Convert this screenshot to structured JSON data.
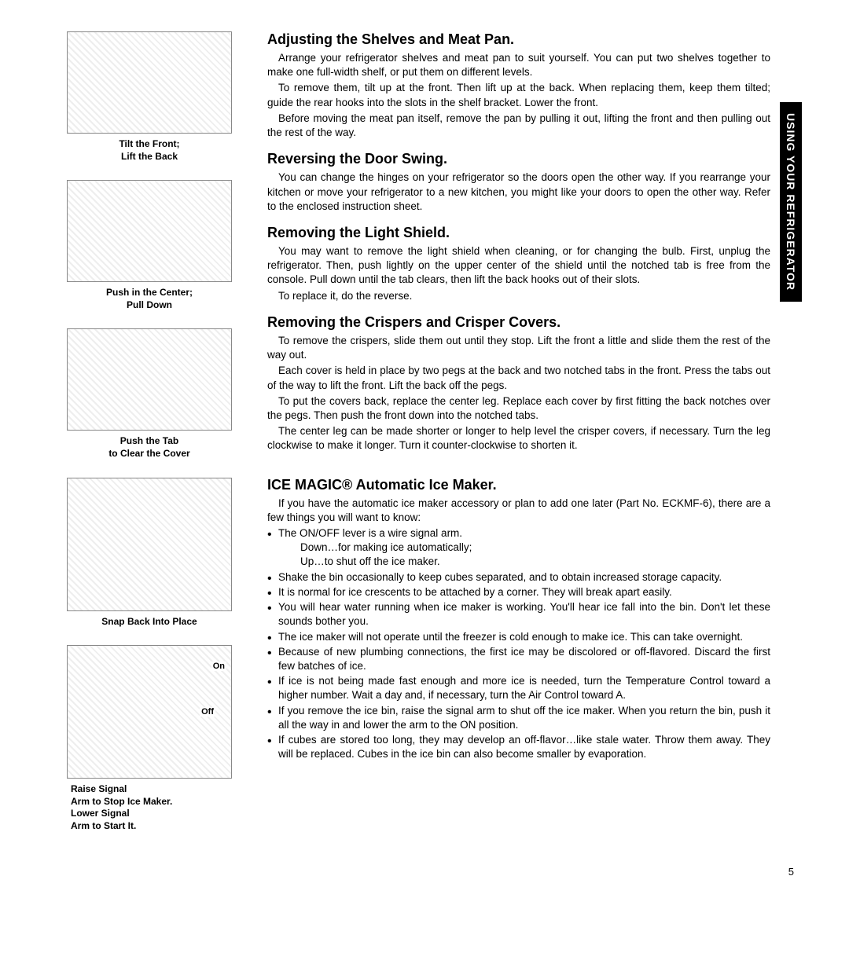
{
  "sideTab": "USING YOUR REFRIGERATOR",
  "figures": [
    {
      "caption": "Tilt the Front;\nLift the Back"
    },
    {
      "caption": "Push in the Center;\nPull Down"
    },
    {
      "caption": "Push the Tab\nto Clear the Cover"
    },
    {
      "caption": "Snap Back Into Place"
    },
    {
      "caption": "Raise Signal\nArm to Stop Ice Maker.\nLower Signal\nArm to Start It.",
      "labels": {
        "on": "On",
        "off": "Off"
      }
    }
  ],
  "sections": [
    {
      "heading": "Adjusting the Shelves and Meat Pan.",
      "paragraphs": [
        "Arrange your refrigerator shelves and meat pan to suit yourself. You can put two shelves together to make one full-width shelf, or put them on different levels.",
        "To remove them, tilt up at the front. Then lift up at the back. When replacing them, keep them tilted; guide the rear hooks into the slots in the shelf bracket. Lower the front.",
        "Before moving the meat pan itself, remove the pan by pulling it out, lifting the front and then pulling out the rest of the way."
      ]
    },
    {
      "heading": "Reversing the Door Swing.",
      "paragraphs": [
        "You can change the hinges on your refrigerator so the doors open the other way. If you rearrange your kitchen or move your refrigerator to a new kitchen, you might like your doors to open the other way. Refer to the enclosed instruction sheet."
      ]
    },
    {
      "heading": "Removing the Light Shield.",
      "paragraphs": [
        "You may want to remove the light shield when cleaning, or for changing the bulb. First, unplug the refrigerator. Then, push lightly on the upper center of the shield until the notched tab is free from the console. Pull down until the tab clears, then lift the back hooks out of their slots.",
        "To replace it, do the reverse."
      ]
    },
    {
      "heading": "Removing the Crispers and Crisper Covers.",
      "paragraphs": [
        "To remove the crispers, slide them out until they stop. Lift the front a little and slide them the rest of the way out.",
        "Each cover is held in place by two pegs at the back and two notched tabs in the front. Press the tabs out of the way to lift the front. Lift the back off the pegs.",
        "To put the covers back, replace the center leg. Replace each cover by first fitting the back notches over the pegs. Then push the front down into the notched tabs.",
        "The center leg can be made shorter or longer to help level the crisper covers, if necessary. Turn the leg clockwise to make it longer. Turn it counter-clockwise to shorten it."
      ]
    },
    {
      "heading": "ICE MAGIC® Automatic Ice Maker.",
      "intro": "If you have the automatic ice maker accessory or plan to add one later (Part No. ECKMF-6), there are a few things you will want to know:",
      "bullets": [
        {
          "text": "The ON/OFF lever is a wire signal arm.",
          "sub": [
            "Down…for making ice automatically;",
            "Up…to shut off the ice maker."
          ]
        },
        {
          "text": "Shake the bin occasionally to keep cubes separated, and to obtain increased storage capacity."
        },
        {
          "text": "It is normal for ice crescents to be attached by a corner. They will break apart easily."
        },
        {
          "text": "You will hear water running when ice maker is working. You'll hear ice fall into the bin. Don't let these sounds bother you."
        },
        {
          "text": "The ice maker will not operate until the freezer is cold enough to make ice. This can take overnight."
        },
        {
          "text": "Because of new plumbing connections, the first ice may be discolored or off-flavored. Discard the first few batches of ice."
        },
        {
          "text": "If ice is not being made fast enough and more ice is needed, turn the Temperature Control toward a higher number. Wait a day and, if necessary, turn the Air Control toward A."
        },
        {
          "text": "If you remove the ice bin, raise the signal arm to shut off the ice maker. When you return the bin, push it all the way in and lower the arm to the ON position."
        },
        {
          "text": "If cubes are stored too long, they may develop an off-flavor…like stale water. Throw them away. They will be replaced. Cubes in the ice bin can also become smaller by evaporation."
        }
      ]
    }
  ],
  "pageNumber": "5"
}
